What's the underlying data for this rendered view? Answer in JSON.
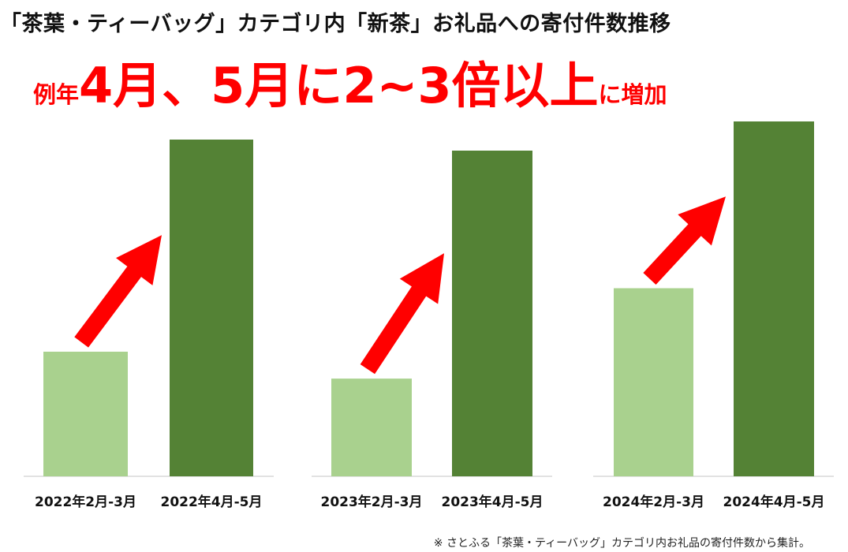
{
  "title": "「茶葉・ティーバッグ」カテゴリ内「新茶」お礼品への寄付件数推移",
  "headline": {
    "prefix": "例年",
    "part1": "4月、5月",
    "joiner": "に",
    "part2": "2~3倍以上",
    "suffix": "に増加"
  },
  "footnote": "※ さとふる「茶葉・ティーバッグ」カテゴリ内お礼品の寄付件数から集計。",
  "colors": {
    "light_bar": "#a9d18e",
    "dark_bar": "#548235",
    "arrow": "#ff0000",
    "headline": "#ff0000"
  },
  "chart_data": [
    {
      "type": "bar",
      "categories": [
        "2022年2月-3月",
        "2022年4月-5月"
      ],
      "values": [
        37,
        100
      ],
      "ylim": [
        0,
        100
      ]
    },
    {
      "type": "bar",
      "categories": [
        "2023年2月-3月",
        "2023年4月-5月"
      ],
      "values": [
        30,
        100
      ],
      "ylim": [
        0,
        100
      ]
    },
    {
      "type": "bar",
      "categories": [
        "2024年2月-3月",
        "2024年4月-5月"
      ],
      "values": [
        53,
        100
      ],
      "ylim": [
        0,
        100
      ]
    }
  ]
}
